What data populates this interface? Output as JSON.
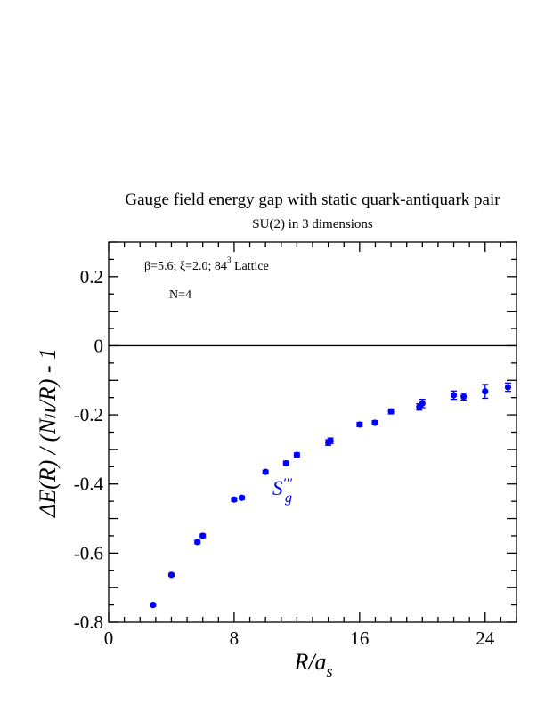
{
  "chart_data": {
    "type": "scatter",
    "title": "Gauge field energy gap with static quark-antiquark pair",
    "subtitle": "SU(2) in 3 dimensions",
    "xlabel": {
      "main": "R/a",
      "sub": "s"
    },
    "ylabel": "ΔE(R) / (Nπ/R) - 1",
    "xlim": [
      0,
      26
    ],
    "ylim": [
      -0.8,
      0.3
    ],
    "xticks": [
      0,
      8,
      16,
      24
    ],
    "xtick_labels": [
      "0",
      "8",
      "16",
      "24"
    ],
    "yticks": [
      -0.8,
      -0.6,
      -0.4,
      -0.2,
      0,
      0.2
    ],
    "ytick_labels": [
      "-0.8",
      "-0.6",
      "-0.4",
      "-0.2",
      "0",
      "0.2"
    ],
    "grid": false,
    "reference_line_y": 0,
    "annotations": {
      "params_left": "β=5.6;  ξ=2.0;  84",
      "params_sup": "3",
      "params_right": " Lattice",
      "n_label": "N=4",
      "series_label": {
        "main": "S",
        "primes": "′′′",
        "sub": "g"
      }
    },
    "series": [
      {
        "color": "#0000ff",
        "points": [
          {
            "x": 2.83,
            "y": -0.75,
            "err": 0.004
          },
          {
            "x": 4.0,
            "y": -0.663,
            "err": 0.004
          },
          {
            "x": 5.66,
            "y": -0.568,
            "err": 0.005
          },
          {
            "x": 6.0,
            "y": -0.55,
            "err": 0.005
          },
          {
            "x": 8.0,
            "y": -0.445,
            "err": 0.005
          },
          {
            "x": 8.49,
            "y": -0.44,
            "err": 0.005
          },
          {
            "x": 10.0,
            "y": -0.365,
            "err": 0.005
          },
          {
            "x": 11.31,
            "y": -0.34,
            "err": 0.006
          },
          {
            "x": 12.0,
            "y": -0.316,
            "err": 0.006
          },
          {
            "x": 14.0,
            "y": -0.28,
            "err": 0.008
          },
          {
            "x": 14.14,
            "y": -0.275,
            "err": 0.008
          },
          {
            "x": 16.0,
            "y": -0.228,
            "err": 0.006
          },
          {
            "x": 16.97,
            "y": -0.223,
            "err": 0.006
          },
          {
            "x": 18.0,
            "y": -0.19,
            "err": 0.007
          },
          {
            "x": 19.8,
            "y": -0.177,
            "err": 0.009
          },
          {
            "x": 20.0,
            "y": -0.167,
            "err": 0.012
          },
          {
            "x": 22.0,
            "y": -0.143,
            "err": 0.012
          },
          {
            "x": 22.63,
            "y": -0.147,
            "err": 0.01
          },
          {
            "x": 24.0,
            "y": -0.132,
            "err": 0.02
          },
          {
            "x": 25.46,
            "y": -0.12,
            "err": 0.012
          }
        ]
      }
    ]
  }
}
